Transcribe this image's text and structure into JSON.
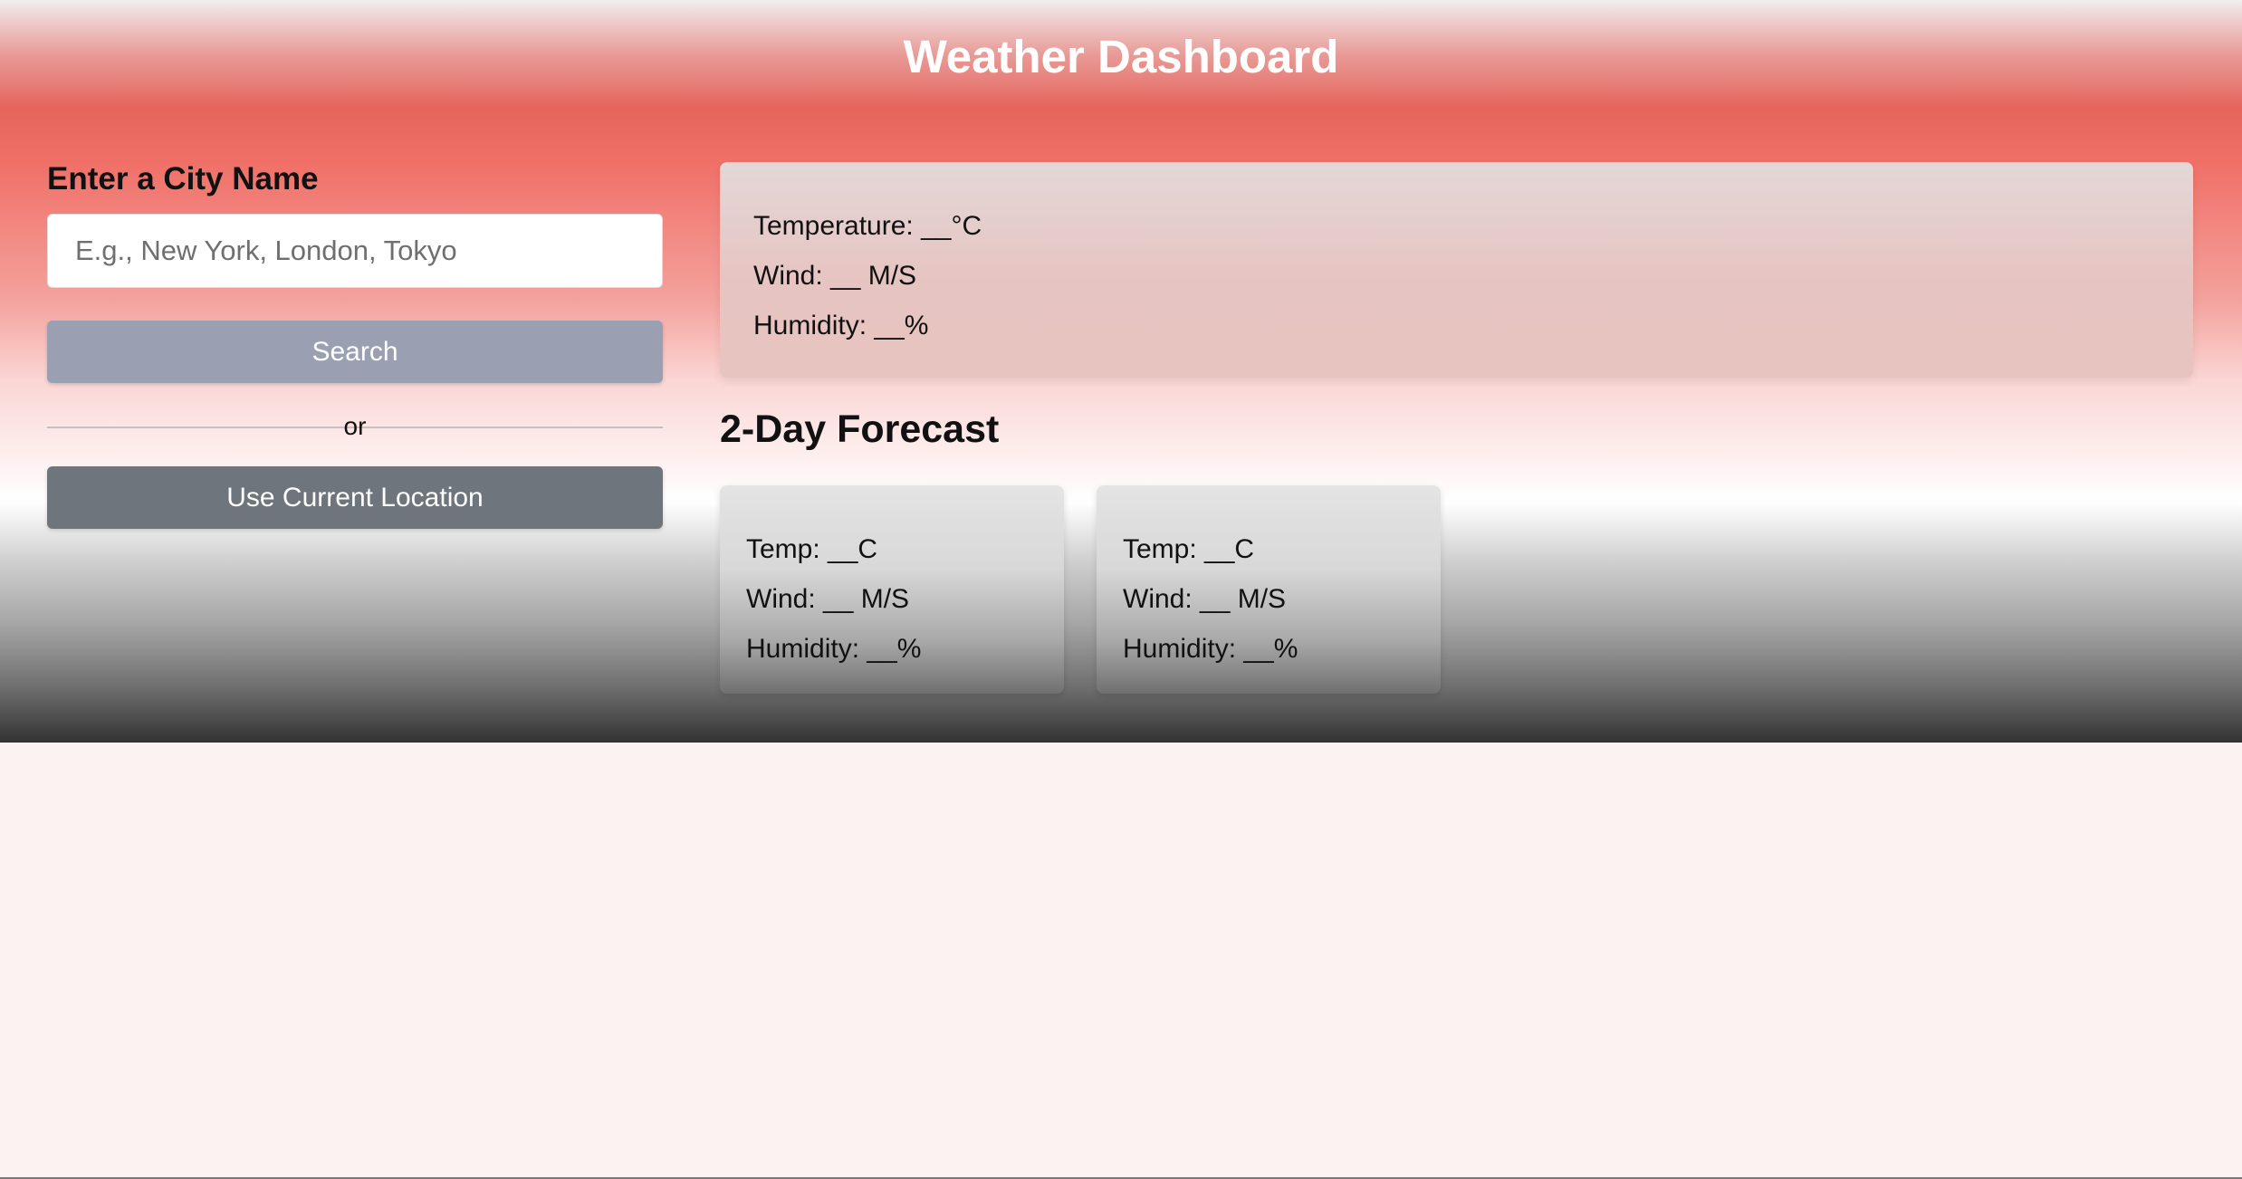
{
  "header": {
    "title": "Weather Dashboard"
  },
  "search": {
    "label": "Enter a City Name",
    "placeholder": "E.g., New York, London, Tokyo",
    "value": "",
    "search_button": "Search",
    "divider_text": "or",
    "location_button": "Use Current Location"
  },
  "current": {
    "temperature": "Temperature: __°C",
    "wind": "Wind: __ M/S",
    "humidity": "Humidity: __%"
  },
  "forecast": {
    "title": "2-Day Forecast",
    "days": [
      {
        "temp": "Temp: __C",
        "wind": "Wind: __ M/S",
        "humidity": "Humidity: __%"
      },
      {
        "temp": "Temp: __C",
        "wind": "Wind: __ M/S",
        "humidity": "Humidity: __%"
      }
    ]
  },
  "colors": {
    "search_button": "#9aa0b2",
    "location_button": "#6e757d",
    "header_red": "#e5645c"
  }
}
